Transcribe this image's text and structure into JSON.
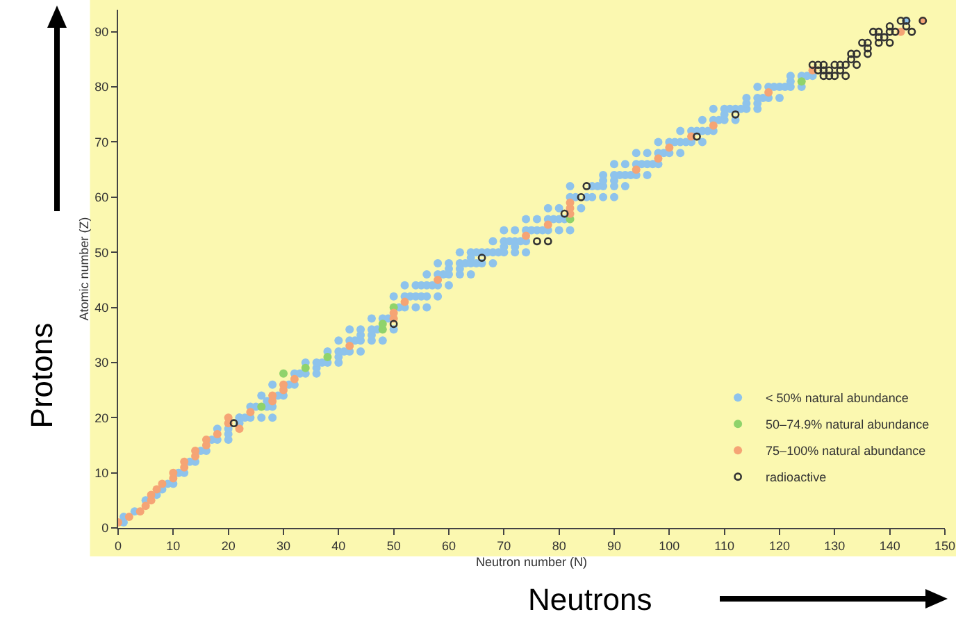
{
  "chart_data": {
    "type": "scatter",
    "xlabel": "Neutron number (N)",
    "ylabel": "Atomic number (Z)",
    "xlim": [
      0,
      150
    ],
    "ylim": [
      0,
      94
    ],
    "xticks": [
      0,
      10,
      20,
      30,
      40,
      50,
      60,
      70,
      80,
      90,
      100,
      110,
      120,
      130,
      140,
      150
    ],
    "yticks": [
      0,
      10,
      20,
      30,
      40,
      50,
      60,
      70,
      80,
      90
    ],
    "grid": false,
    "legend": "bottom right",
    "marker": "circle",
    "annotations": [
      "Protons",
      "Neutrons"
    ],
    "series": [
      {
        "name": "< 50% natural abundance",
        "color": "#8ec3ec",
        "x": [
          1,
          1,
          3,
          5,
          7,
          8,
          9,
          10,
          11,
          12,
          13,
          14,
          15,
          16,
          17,
          18,
          20,
          20,
          18,
          20,
          22,
          22,
          22,
          23,
          24,
          26,
          28,
          24,
          25,
          27,
          28,
          27,
          26,
          29,
          30,
          28,
          31,
          32,
          32,
          33,
          34,
          36,
          36,
          34,
          36,
          37,
          38,
          40,
          40,
          38,
          40,
          41,
          42,
          44,
          40,
          42,
          43,
          44,
          46,
          48,
          44,
          46,
          42,
          44,
          46,
          47,
          50,
          46,
          48,
          49,
          51,
          52,
          54,
          56,
          50,
          52,
          53,
          54,
          55,
          56,
          58,
          52,
          54,
          55,
          56,
          57,
          58,
          60,
          56,
          58,
          59,
          60,
          62,
          64,
          60,
          62,
          58,
          60,
          62,
          63,
          64,
          65,
          66,
          68,
          64,
          62,
          64,
          65,
          66,
          67,
          68,
          69,
          70,
          72,
          74,
          70,
          72,
          68,
          70,
          71,
          72,
          73,
          74,
          70,
          72,
          74,
          75,
          76,
          77,
          78,
          80,
          82,
          74,
          76,
          78,
          79,
          80,
          81,
          78,
          80,
          84,
          82,
          83,
          85,
          86,
          88,
          90,
          82,
          86,
          87,
          88,
          90,
          92,
          88,
          90,
          88,
          90,
          91,
          92,
          93,
          94,
          96,
          90,
          92,
          94,
          95,
          96,
          97,
          98,
          94,
          96,
          98,
          99,
          100,
          102,
          98,
          100,
          101,
          102,
          103,
          104,
          106,
          102,
          104,
          105,
          106,
          107,
          108,
          106,
          108,
          109,
          110,
          112,
          110,
          108,
          110,
          111,
          112,
          113,
          114,
          116,
          114,
          116,
          114,
          116,
          117,
          118,
          120,
          116,
          118,
          119,
          120,
          121,
          122,
          124,
          122,
          122,
          124,
          125,
          126,
          143
        ],
        "values": [
          1,
          2,
          3,
          5,
          6,
          7,
          8,
          8,
          10,
          10,
          12,
          12,
          14,
          14,
          16,
          16,
          16,
          17,
          18,
          18,
          19,
          20,
          20,
          20,
          20,
          20,
          20,
          22,
          22,
          22,
          22,
          23,
          24,
          24,
          24,
          26,
          26,
          26,
          28,
          28,
          28,
          28,
          29,
          30,
          30,
          30,
          30,
          30,
          31,
          32,
          32,
          32,
          32,
          32,
          34,
          34,
          34,
          34,
          34,
          34,
          35,
          35,
          36,
          36,
          36,
          36,
          36,
          38,
          38,
          38,
          40,
          40,
          40,
          40,
          42,
          42,
          42,
          42,
          42,
          42,
          42,
          44,
          44,
          44,
          44,
          44,
          44,
          44,
          46,
          46,
          46,
          46,
          46,
          46,
          47,
          47,
          48,
          48,
          48,
          48,
          48,
          48,
          48,
          48,
          49,
          50,
          50,
          50,
          50,
          50,
          50,
          50,
          50,
          50,
          50,
          51,
          51,
          52,
          52,
          52,
          52,
          52,
          52,
          54,
          54,
          54,
          54,
          54,
          54,
          54,
          54,
          54,
          56,
          56,
          56,
          56,
          56,
          56,
          58,
          58,
          58,
          60,
          60,
          60,
          60,
          60,
          60,
          62,
          62,
          62,
          62,
          62,
          62,
          63,
          63,
          64,
          64,
          64,
          64,
          64,
          64,
          64,
          66,
          66,
          66,
          66,
          66,
          66,
          66,
          68,
          68,
          68,
          68,
          68,
          68,
          70,
          70,
          70,
          70,
          70,
          70,
          70,
          72,
          72,
          72,
          72,
          72,
          72,
          74,
          74,
          74,
          74,
          74,
          75,
          76,
          76,
          76,
          76,
          76,
          76,
          76,
          77,
          77,
          78,
          78,
          78,
          78,
          78,
          80,
          80,
          80,
          80,
          80,
          80,
          80,
          81,
          82,
          82,
          82,
          82,
          92
        ]
      },
      {
        "name": "50–74.9% natural abundance",
        "color": "#8fd36b",
        "x": [
          26,
          30,
          34,
          38,
          48,
          48,
          50,
          82,
          124
        ],
        "values": [
          22,
          28,
          29,
          31,
          36,
          37,
          40,
          56,
          81
        ]
      },
      {
        "name": "75–100% natural abundance",
        "color": "#f5a475",
        "x": [
          0,
          2,
          4,
          5,
          6,
          6,
          7,
          8,
          10,
          10,
          12,
          12,
          14,
          14,
          16,
          16,
          18,
          22,
          20,
          20,
          24,
          28,
          28,
          30,
          30,
          32,
          42,
          50,
          50,
          52,
          58,
          74,
          78,
          82,
          82,
          82,
          94,
          98,
          100,
          104,
          108,
          118,
          126,
          142,
          146
        ],
        "values": [
          1,
          2,
          3,
          4,
          5,
          6,
          7,
          8,
          9,
          10,
          11,
          12,
          13,
          14,
          15,
          16,
          17,
          18,
          19,
          20,
          21,
          23,
          24,
          25,
          26,
          27,
          33,
          38,
          39,
          41,
          45,
          53,
          55,
          57,
          58,
          59,
          65,
          67,
          69,
          71,
          73,
          79,
          83,
          90,
          92
        ]
      },
      {
        "name": "radioactive",
        "color": "#333333",
        "marker": "circle-open",
        "x": [
          21,
          50,
          66,
          76,
          78,
          81,
          84,
          85,
          105,
          112,
          128,
          129,
          130,
          132,
          127,
          128,
          129,
          131,
          126,
          127,
          128,
          130,
          131,
          132,
          134,
          133,
          133,
          134,
          136,
          136,
          135,
          136,
          138,
          140,
          138,
          139,
          137,
          138,
          140,
          141,
          144,
          140,
          143,
          142,
          143,
          146
        ],
        "values": [
          19,
          37,
          49,
          52,
          52,
          57,
          60,
          62,
          71,
          75,
          82,
          82,
          82,
          82,
          83,
          83,
          83,
          83,
          84,
          84,
          84,
          84,
          84,
          84,
          84,
          85,
          86,
          86,
          86,
          87,
          88,
          88,
          88,
          88,
          89,
          89,
          90,
          90,
          90,
          90,
          90,
          91,
          91,
          92,
          92,
          92
        ]
      }
    ]
  }
}
